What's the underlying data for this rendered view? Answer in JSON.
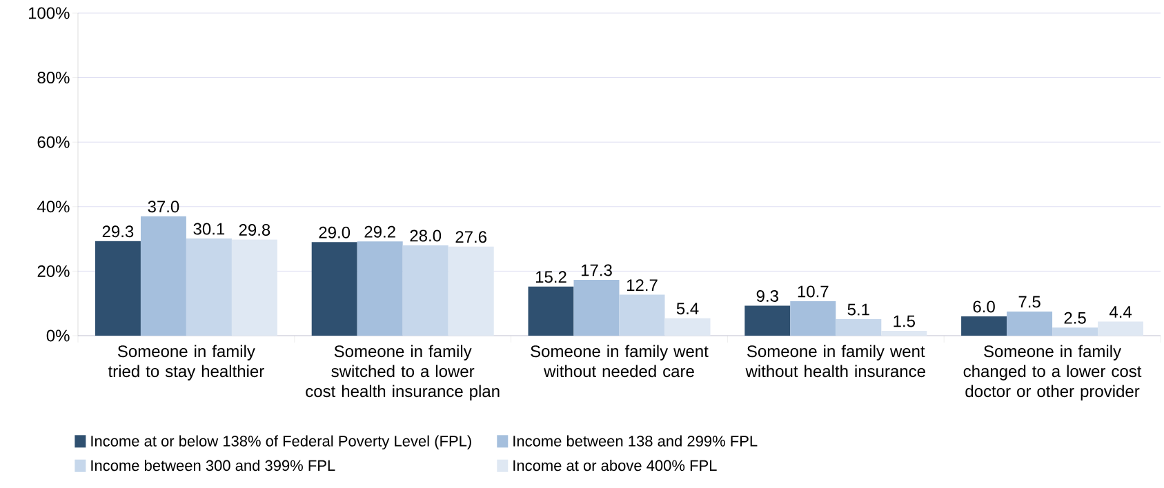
{
  "chart_data": {
    "type": "bar",
    "categories": [
      "Someone in family tried to stay healthier",
      "Someone in family switched to a lower cost health insurance plan",
      "Someone in family went without needed care",
      "Someone in family went without health insurance",
      "Someone in family changed to a lower cost doctor or other provider"
    ],
    "series": [
      {
        "name": "Income at or below 138% of Federal Poverty Level (FPL)",
        "color": "#2f5070",
        "values": [
          29.3,
          29.0,
          15.2,
          9.3,
          6.0
        ],
        "value_labels": [
          "29.3",
          "29.0",
          "15.2",
          "9.3",
          "6.0"
        ]
      },
      {
        "name": "Income between 138 and 299% FPL",
        "color": "#a5bfdd",
        "values": [
          37.0,
          29.2,
          17.3,
          10.7,
          7.5
        ],
        "value_labels": [
          "37.0",
          "29.2",
          "17.3",
          "10.7",
          "7.5"
        ]
      },
      {
        "name": "Income between 300 and 399% FPL",
        "color": "#c6d7eb",
        "values": [
          30.1,
          28.0,
          12.7,
          5.1,
          2.5
        ],
        "value_labels": [
          "30.1",
          "28.0",
          "12.7",
          "5.1",
          "2.5"
        ]
      },
      {
        "name": "Income at or above 400% FPL",
        "color": "#dfe8f3",
        "values": [
          29.8,
          27.6,
          5.4,
          1.5,
          4.4
        ],
        "value_labels": [
          "29.8",
          "27.6",
          "5.4",
          "1.5",
          "4.4"
        ]
      }
    ],
    "ylim": [
      0,
      100
    ],
    "yticks": [
      {
        "value": 0,
        "label": "0%"
      },
      {
        "value": 20,
        "label": "20%"
      },
      {
        "value": 40,
        "label": "40%"
      },
      {
        "value": 60,
        "label": "60%"
      },
      {
        "value": 80,
        "label": "80%"
      },
      {
        "value": 100,
        "label": "100%"
      }
    ],
    "grid": "y",
    "legend": "bottom"
  }
}
